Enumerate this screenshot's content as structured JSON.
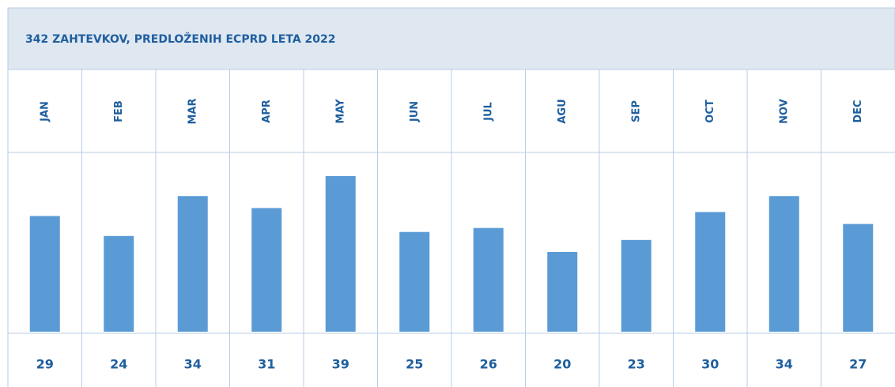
{
  "chart_data": {
    "type": "bar",
    "title": "342 ZAHTEVKOV, PREDLOŽENIH ECPRD LETA 2022",
    "categories": [
      "JAN",
      "FEB",
      "MAR",
      "APR",
      "MAY",
      "JUN",
      "JUL",
      "AGU",
      "SEP",
      "OCT",
      "NOV",
      "DEC"
    ],
    "values": [
      29,
      24,
      34,
      31,
      39,
      25,
      26,
      20,
      23,
      30,
      34,
      27
    ],
    "color": "#5b9bd5"
  }
}
